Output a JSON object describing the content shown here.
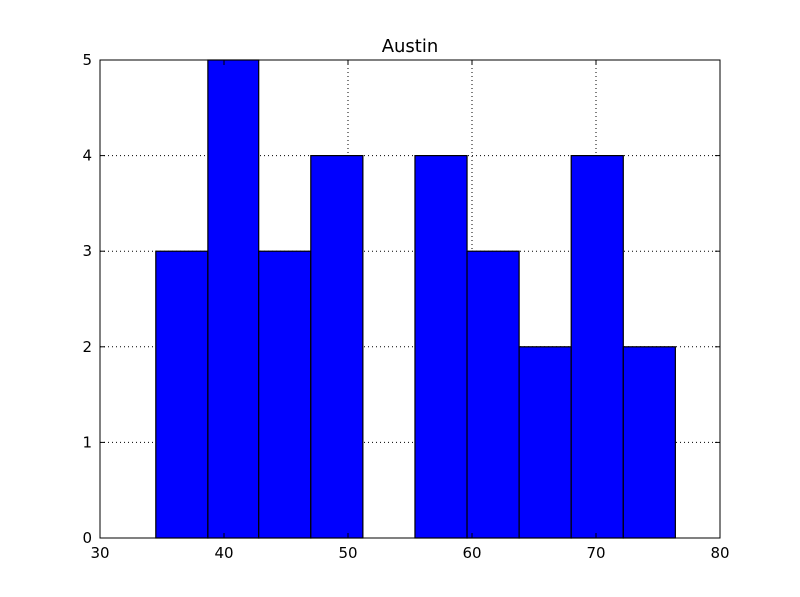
{
  "chart_data": {
    "type": "bar",
    "title": "Austin",
    "xlabel": "",
    "ylabel": "",
    "xlim": [
      30,
      80
    ],
    "ylim": [
      0,
      5
    ],
    "grid": true,
    "bar_color": "#0000ff",
    "edge_color": "#000000",
    "bins": [
      {
        "start": 34.5,
        "end": 38.7,
        "count": 3
      },
      {
        "start": 38.7,
        "end": 42.8,
        "count": 5
      },
      {
        "start": 42.8,
        "end": 47.0,
        "count": 3
      },
      {
        "start": 47.0,
        "end": 51.2,
        "count": 4
      },
      {
        "start": 51.2,
        "end": 55.4,
        "count": 0
      },
      {
        "start": 55.4,
        "end": 59.6,
        "count": 4
      },
      {
        "start": 59.6,
        "end": 63.8,
        "count": 3
      },
      {
        "start": 63.8,
        "end": 68.0,
        "count": 2
      },
      {
        "start": 68.0,
        "end": 72.2,
        "count": 4
      },
      {
        "start": 72.2,
        "end": 76.4,
        "count": 2
      }
    ],
    "x_ticks": [
      30,
      40,
      50,
      60,
      70,
      80
    ],
    "y_ticks": [
      0,
      1,
      2,
      3,
      4,
      5
    ]
  }
}
